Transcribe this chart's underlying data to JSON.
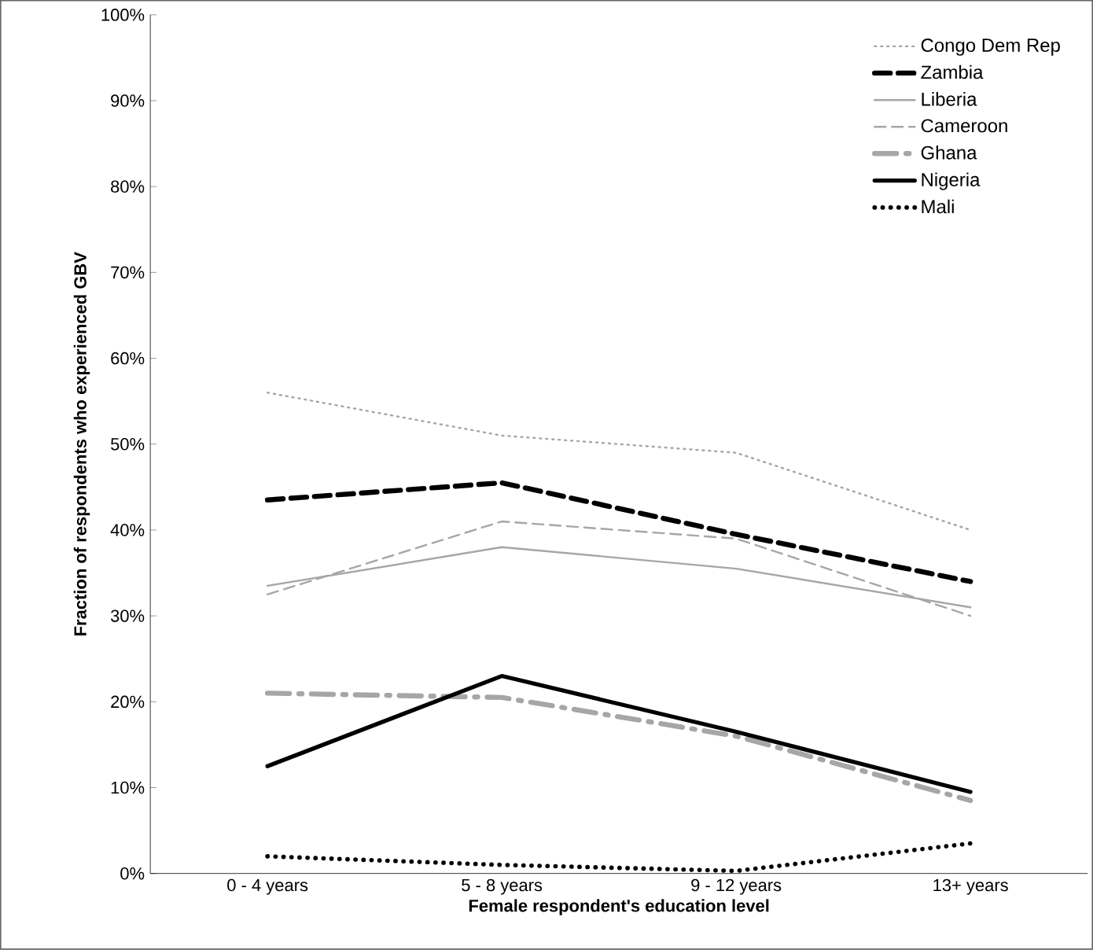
{
  "chart_data": {
    "type": "line",
    "xlabel": "Female respondent's education level",
    "ylabel": "Fraction of respondents who experienced GBV",
    "categories": [
      "0 - 4 years",
      "5 - 8 years",
      "9 - 12 years",
      "13+ years"
    ],
    "series": [
      {
        "name": "Congo Dem Rep",
        "color": "#a6a6a6",
        "line_style": "dotted",
        "values": [
          56,
          51,
          49,
          40
        ]
      },
      {
        "name": "Zambia",
        "color": "#000000",
        "line_style": "dashed",
        "values": [
          43.5,
          45.5,
          39.5,
          34
        ]
      },
      {
        "name": "Liberia",
        "color": "#a6a6a6",
        "line_style": "solid",
        "values": [
          33.5,
          38,
          35.5,
          31
        ]
      },
      {
        "name": "Cameroon",
        "color": "#a6a6a6",
        "line_style": "dashed",
        "values": [
          32.5,
          41,
          39,
          30
        ]
      },
      {
        "name": "Ghana",
        "color": "#a6a6a6",
        "line_style": "dashdot",
        "values": [
          21,
          20.5,
          16,
          8.5
        ]
      },
      {
        "name": "Nigeria",
        "color": "#000000",
        "line_style": "solid",
        "values": [
          12.5,
          23,
          16.5,
          9.5
        ]
      },
      {
        "name": "Mali",
        "color": "#000000",
        "line_style": "dotted",
        "values": [
          2,
          1,
          0.3,
          3.5
        ]
      }
    ],
    "ylim": [
      0,
      100
    ],
    "yticks": [
      {
        "value": 0,
        "label": "0%"
      },
      {
        "value": 10,
        "label": "10%"
      },
      {
        "value": 20,
        "label": "20%"
      },
      {
        "value": 30,
        "label": "30%"
      },
      {
        "value": 40,
        "label": "40%"
      },
      {
        "value": 50,
        "label": "50%"
      },
      {
        "value": 60,
        "label": "60%"
      },
      {
        "value": 70,
        "label": "70%"
      },
      {
        "value": 80,
        "label": "80%"
      },
      {
        "value": 90,
        "label": "90%"
      },
      {
        "value": 100,
        "label": "100%"
      }
    ],
    "legend": "top right",
    "grid": false,
    "marker": "none"
  }
}
